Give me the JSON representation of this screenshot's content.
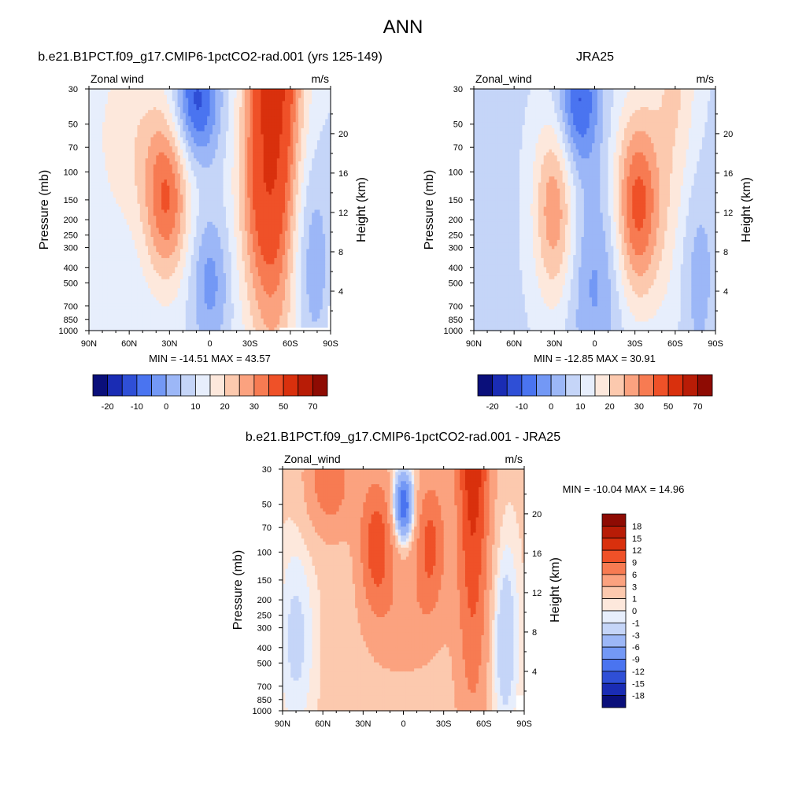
{
  "title": "ANN",
  "chart_data": [
    {
      "type": "heatmap",
      "title": "b.e21.B1PCT.f09_g17.CMIP6-1pctCO2-rad.001 (yrs 125-149)",
      "variable_label": "Zonal wind",
      "units": "m/s",
      "xlabel": "",
      "ylabel": "Pressure (mb)",
      "y2label": "Height (km)",
      "x_ticks": [
        "90N",
        "60N",
        "30N",
        "0",
        "30S",
        "60S",
        "90S"
      ],
      "y_ticks": [
        "30",
        "50",
        "70",
        "100",
        "150",
        "200",
        "250",
        "300",
        "400",
        "500",
        "700",
        "850",
        "1000"
      ],
      "y2_ticks": [
        "20",
        "16",
        "12",
        "8",
        "4"
      ],
      "stats": "MIN = -14.51  MAX =  43.57",
      "levels": [
        "-20",
        "-10",
        "0",
        "10",
        "20",
        "30",
        "50",
        "70"
      ],
      "jets": [
        {
          "lat": -52,
          "p": 40,
          "value": 43.57
        },
        {
          "lat": -38,
          "p": 200,
          "value": 30
        },
        {
          "lat": 30,
          "p": 170,
          "value": 24
        },
        {
          "lat": 10,
          "p": 35,
          "value": -14.51
        }
      ]
    },
    {
      "type": "heatmap",
      "title": "JRA25",
      "variable_label": "Zonal_wind",
      "units": "m/s",
      "xlabel": "",
      "ylabel": "Pressure (mb)",
      "y2label": "Height (km)",
      "x_ticks": [
        "90N",
        "60N",
        "30N",
        "0",
        "30S",
        "60S",
        "90S"
      ],
      "y_ticks": [
        "30",
        "50",
        "70",
        "100",
        "150",
        "200",
        "250",
        "300",
        "400",
        "500",
        "700",
        "850",
        "1000"
      ],
      "y2_ticks": [
        "20",
        "16",
        "12",
        "8",
        "4"
      ],
      "stats": "MIN = -12.85  MAX =  30.91",
      "levels": [
        "-20",
        "-10",
        "0",
        "10",
        "20",
        "30",
        "50",
        "70"
      ],
      "jets": [
        {
          "lat": -30,
          "p": 200,
          "value": 30.91
        },
        {
          "lat": 30,
          "p": 200,
          "value": 20
        },
        {
          "lat": 15,
          "p": 35,
          "value": -12.85
        }
      ]
    },
    {
      "type": "heatmap",
      "title": "b.e21.B1PCT.f09_g17.CMIP6-1pctCO2-rad.001 - JRA25",
      "variable_label": "Zonal_wind",
      "units": "m/s",
      "xlabel": "",
      "ylabel": "Pressure (mb)",
      "y2label": "Height (km)",
      "x_ticks": [
        "90N",
        "60N",
        "30N",
        "0",
        "30S",
        "60S",
        "90S"
      ],
      "y_ticks": [
        "30",
        "50",
        "70",
        "100",
        "150",
        "200",
        "250",
        "300",
        "400",
        "500",
        "700",
        "850",
        "1000"
      ],
      "y2_ticks": [
        "20",
        "16",
        "12",
        "8",
        "4"
      ],
      "stats": "MIN = -10.04  MAX =  14.96",
      "levels": [
        "18",
        "15",
        "12",
        "9",
        "6",
        "3",
        "1",
        "0",
        "-1",
        "-3",
        "-6",
        "-9",
        "-12",
        "-15",
        "-18"
      ],
      "extremes": [
        {
          "lat": -50,
          "p": 40,
          "value": 14.96
        },
        {
          "lat": 0,
          "p": 55,
          "value": -10.04
        }
      ]
    }
  ],
  "colors": {
    "model_scale": [
      "#0a0f7a",
      "#1a2cb4",
      "#2f4fd6",
      "#4a74f0",
      "#7398f5",
      "#9cb7f7",
      "#c5d5f8",
      "#e7eefc",
      "#fde8dc",
      "#fcc9ae",
      "#fba27f",
      "#f77b52",
      "#ef5128",
      "#d9300d",
      "#b81c06",
      "#8e0b03"
    ],
    "diff_scale": [
      "#8e0b03",
      "#b81c06",
      "#d9300d",
      "#ef5128",
      "#f77b52",
      "#fba27f",
      "#fcc9ae",
      "#fde8dc",
      "#e7eefc",
      "#c5d5f8",
      "#9cb7f7",
      "#7398f5",
      "#4a74f0",
      "#2f4fd6",
      "#1a2cb4",
      "#0a0f7a"
    ]
  }
}
